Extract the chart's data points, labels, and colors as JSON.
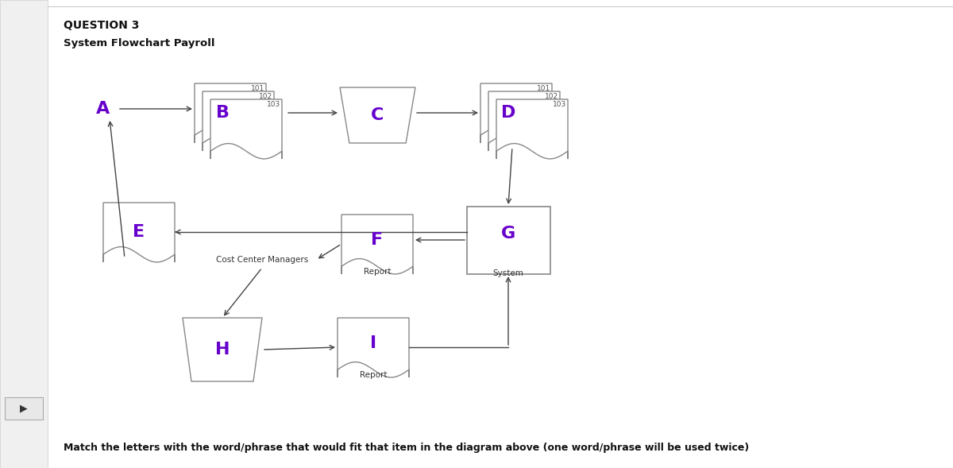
{
  "title": "QUESTION 3",
  "subtitle": "System Flowchart Payroll",
  "bg_color": "#ffffff",
  "letter_color": "#6600cc",
  "shape_edge_color": "#888888",
  "arrow_color": "#444444",
  "font_size_letter": 14,
  "font_size_small": 6.5,
  "font_size_label": 7.5,
  "footer": "Match the letters with the word/phrase that would fit that item in the diagram above (one word/phrase will be used twice)",
  "left_panel_color": "#f0f0f0",
  "left_panel_edge": "#cccccc"
}
